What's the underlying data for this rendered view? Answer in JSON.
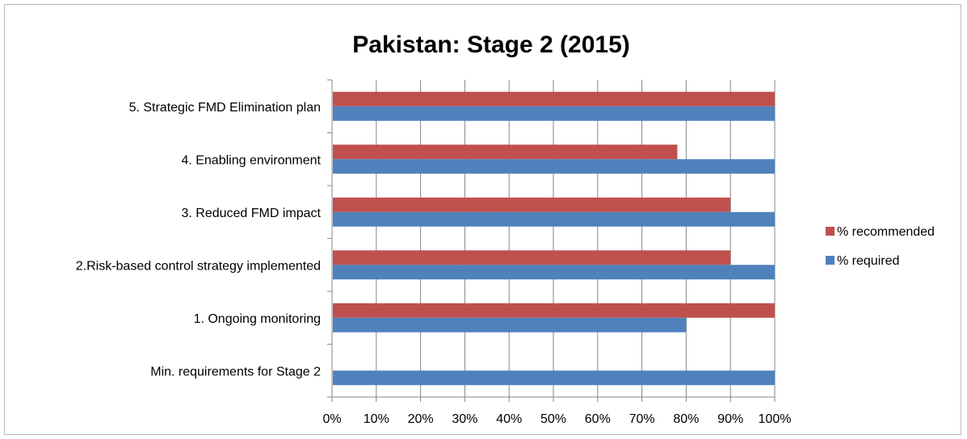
{
  "chart_data": {
    "type": "bar",
    "orientation": "horizontal",
    "title": "Pakistan: Stage 2 (2015)",
    "xlabel": "",
    "ylabel": "",
    "xlim": [
      0,
      100
    ],
    "x_tick_labels": [
      "0%",
      "10%",
      "20%",
      "30%",
      "40%",
      "50%",
      "60%",
      "70%",
      "80%",
      "90%",
      "100%"
    ],
    "categories": [
      "Min. requirements for Stage 2",
      "1. Ongoing monitoring",
      "2.Risk-based control strategy implemented",
      "3. Reduced FMD impact",
      "4. Enabling environment",
      "5. Strategic FMD Elimination plan"
    ],
    "series": [
      {
        "name": "% required",
        "color": "#4f81bd",
        "values": [
          100,
          80,
          100,
          100,
          100,
          100
        ]
      },
      {
        "name": "% recommended",
        "color": "#c0504d",
        "values": [
          null,
          100,
          90,
          90,
          78,
          100
        ]
      }
    ],
    "legend": "right",
    "legend_order": [
      "% recommended",
      "% required"
    ],
    "grid": "vertical",
    "grid_color": "#868686"
  }
}
